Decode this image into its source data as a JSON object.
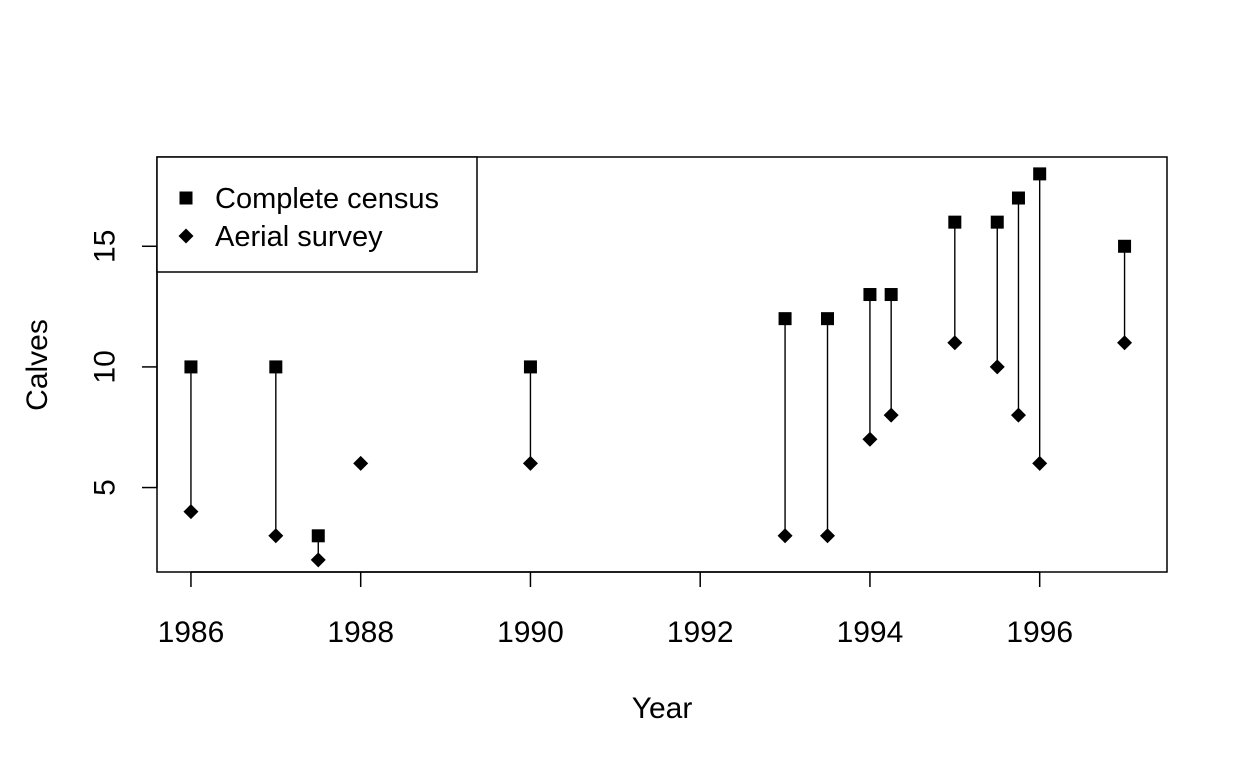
{
  "chart_data": {
    "type": "scatter",
    "title": "",
    "xlabel": "Year",
    "ylabel": "Calves",
    "xlim": [
      1985.6,
      1997.5
    ],
    "ylim": [
      1.5,
      18.7
    ],
    "x_ticks": [
      1986,
      1988,
      1990,
      1992,
      1994,
      1996
    ],
    "y_ticks": [
      5,
      10,
      15
    ],
    "grid": false,
    "legend_position": "top-left",
    "series": [
      {
        "name": "Complete census",
        "marker": "square",
        "x": [
          1986,
          1987,
          1987.5,
          1990,
          1993,
          1993.5,
          1994,
          1994.25,
          1995,
          1995.5,
          1995.75,
          1996,
          1997
        ],
        "y": [
          10,
          10,
          3,
          10,
          12,
          12,
          13,
          13,
          16,
          16,
          17,
          18,
          15
        ]
      },
      {
        "name": "Aerial survey",
        "marker": "diamond",
        "x": [
          1986,
          1987,
          1987.5,
          1988,
          1990,
          1993,
          1993.5,
          1994,
          1994.25,
          1995,
          1995.5,
          1995.75,
          1996,
          1997
        ],
        "y": [
          4,
          3,
          2,
          6,
          6,
          3,
          3,
          7,
          8,
          11,
          10,
          8,
          6,
          11
        ]
      }
    ],
    "connectors": "vertical line between complete census and aerial survey values for the same year",
    "colors": {
      "marker": "#000000",
      "line": "#000000"
    }
  }
}
